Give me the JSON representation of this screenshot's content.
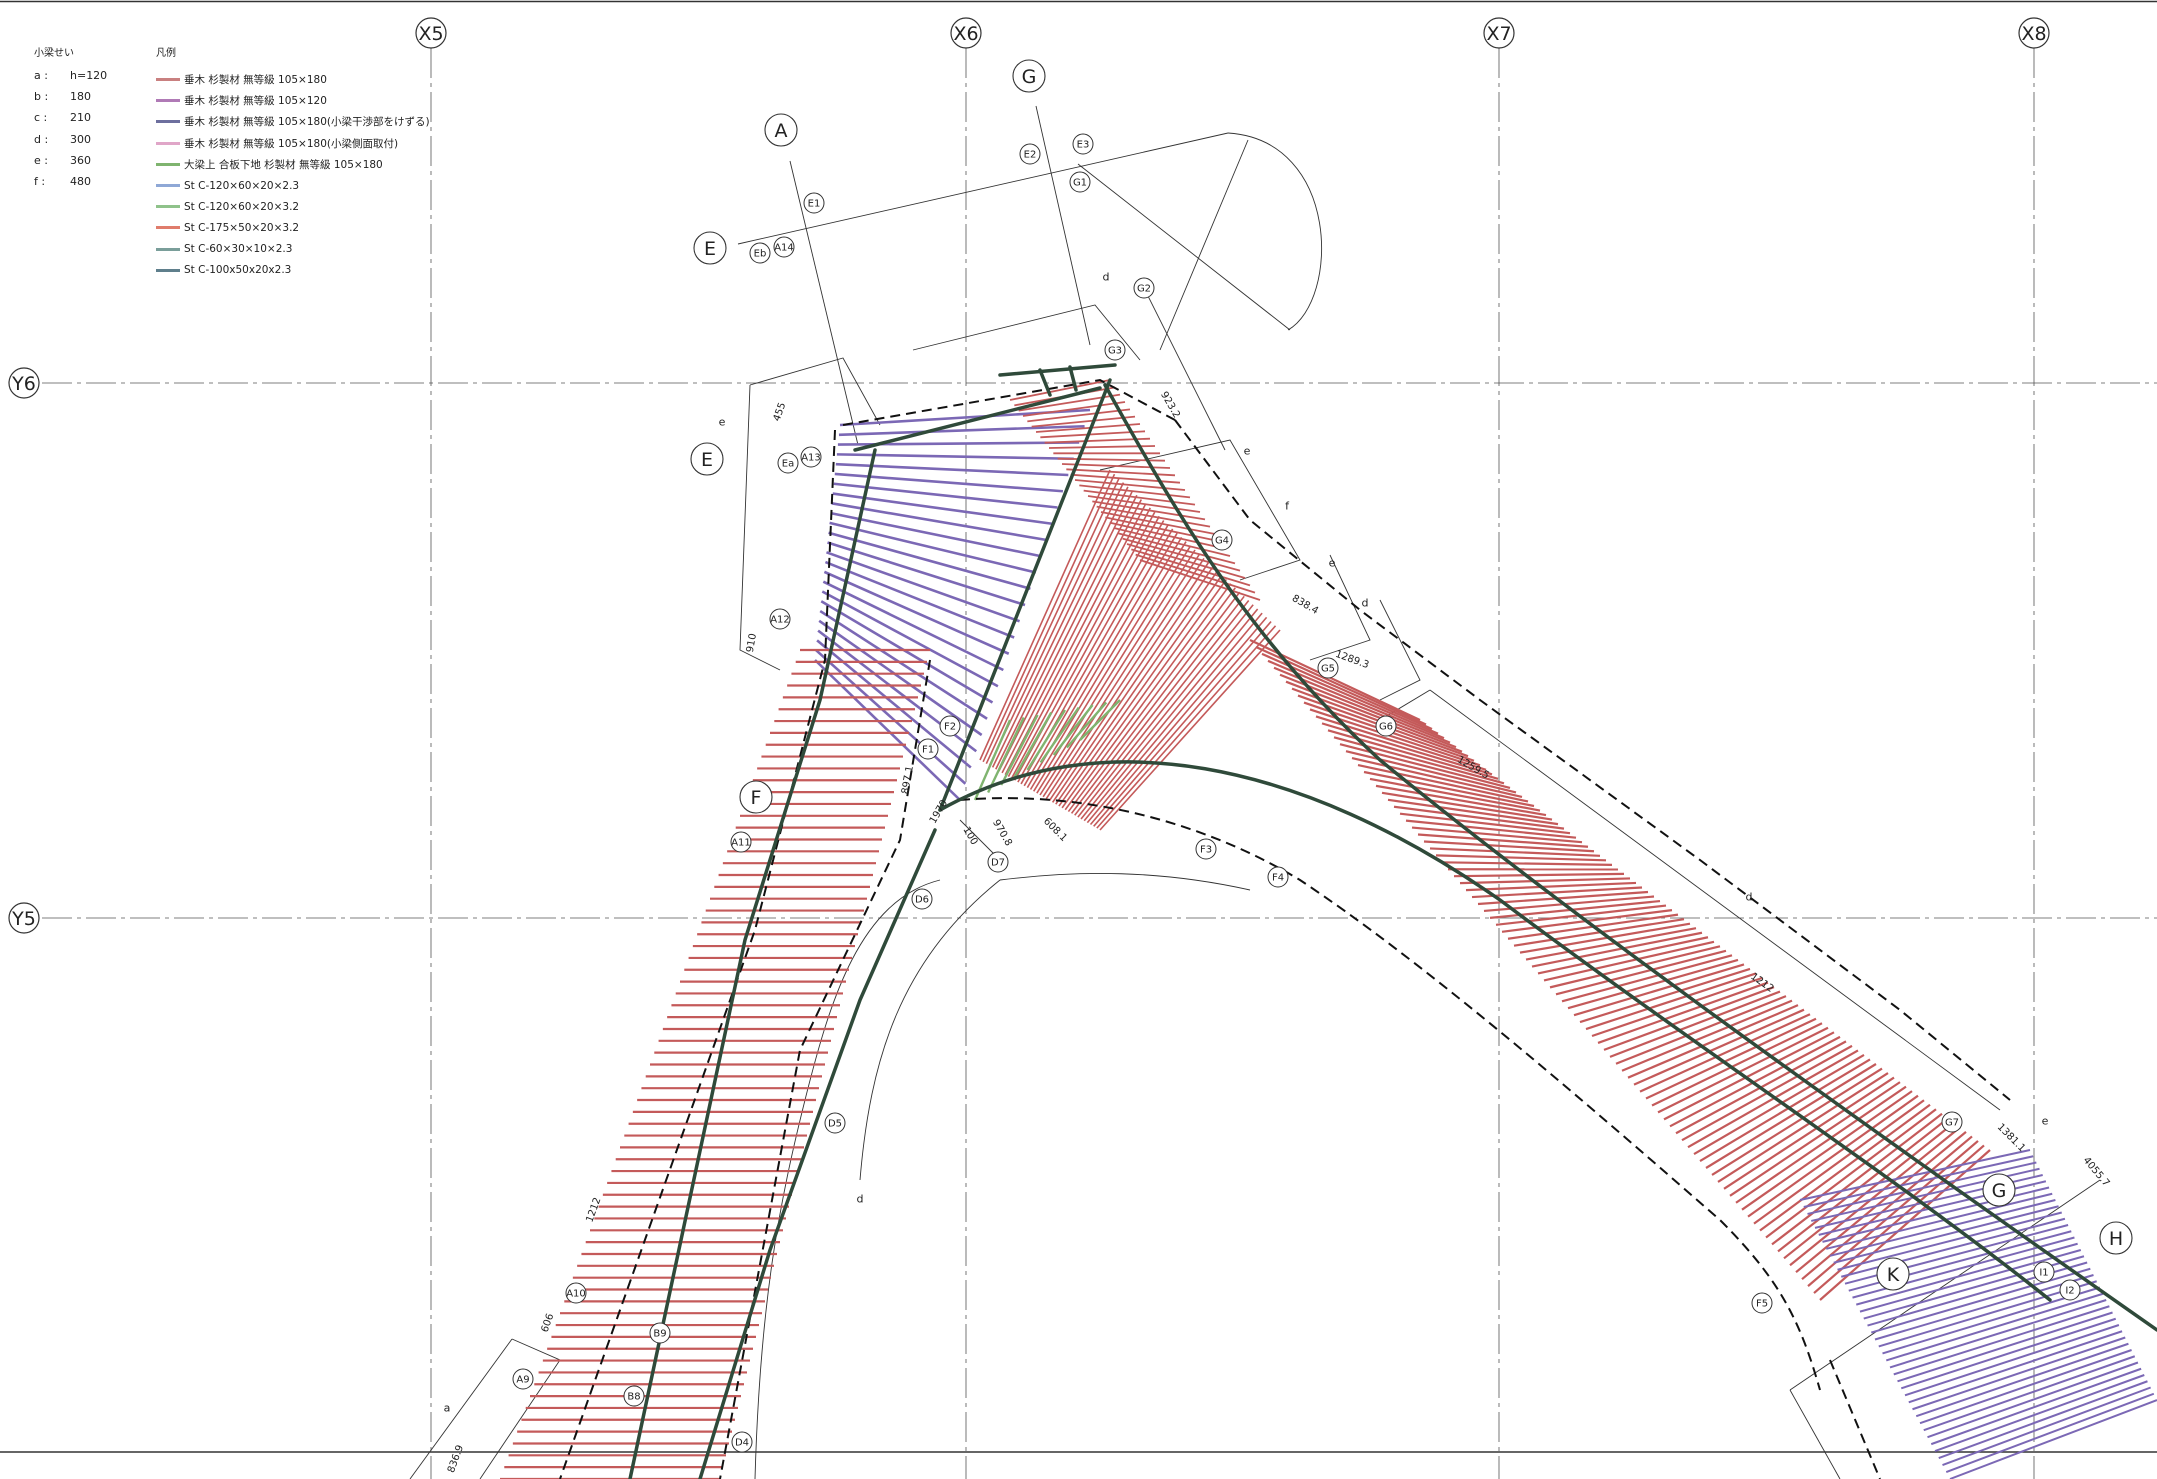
{
  "axes": {
    "x": [
      "X5",
      "X6",
      "X7",
      "X8"
    ],
    "y": [
      "Y6",
      "Y5"
    ]
  },
  "legend": {
    "beam_depth": {
      "title": "小梁せい",
      "rows": [
        {
          "key": "a :",
          "value": "h=120"
        },
        {
          "key": "b :",
          "value": "180"
        },
        {
          "key": "c :",
          "value": "210"
        },
        {
          "key": "d :",
          "value": "300"
        },
        {
          "key": "e :",
          "value": "360"
        },
        {
          "key": "f :",
          "value": "480"
        }
      ]
    },
    "key": {
      "title": "凡例",
      "items": [
        {
          "label": "垂木 杉製材 無等級 105×180",
          "color": "#c98080"
        },
        {
          "label": "垂木 杉製材 無等級 105×120",
          "color": "#b07ab6"
        },
        {
          "label": "垂木 杉製材 無等級 105×180(小梁干渉部をけずる)",
          "color": "#6d6f9e"
        },
        {
          "label": "垂木 杉製材 無等級 105×180(小梁側面取付)",
          "color": "#e0a6c8"
        },
        {
          "label": "大梁上 合板下地 杉製材 無等級 105×180",
          "color": "#7fb46f"
        },
        {
          "label": "St C-120×60×20×2.3",
          "color": "#8fa8d6"
        },
        {
          "label": "St C-120×60×20×3.2",
          "color": "#8fc28a"
        },
        {
          "label": "St C-175×50×20×3.2",
          "color": "#e07c6c"
        },
        {
          "label": "St C-60×30×10×2.3",
          "color": "#7a9e9a"
        },
        {
          "label": "St C-100x50x20x2.3",
          "color": "#5f7f8c"
        }
      ]
    }
  },
  "grid_labels": [
    "A",
    "G",
    "E",
    "E",
    "F",
    "G",
    "K",
    "H"
  ],
  "tags": [
    "E1",
    "E2",
    "E3",
    "G1",
    "Eb",
    "A14",
    "G2",
    "G3",
    "Ea",
    "A13",
    "G4",
    "A12",
    "G5",
    "G6",
    "F2",
    "F1",
    "A11",
    "D7",
    "D6",
    "F3",
    "F4",
    "D5",
    "A10",
    "B9",
    "A9",
    "B8",
    "D4",
    "G7",
    "F5",
    "I1",
    "I2"
  ],
  "dimensions": [
    "455",
    "923.2",
    "838.4",
    "910",
    "1289.3",
    "1259.5",
    "897.1",
    "1970",
    "100",
    "970.8",
    "608.1",
    "1212",
    "1212",
    "606",
    "1381.1",
    "4055.7",
    "836.9"
  ],
  "notes": [
    "e",
    "d",
    "e",
    "f",
    "e",
    "d",
    "d",
    "d",
    "a",
    "e"
  ],
  "colors": {
    "rafter": "#c45a5a",
    "rafter_purple": "#7b68b5",
    "girder": "#2f4a3a",
    "frame": "#333333",
    "grid": "#555555"
  }
}
